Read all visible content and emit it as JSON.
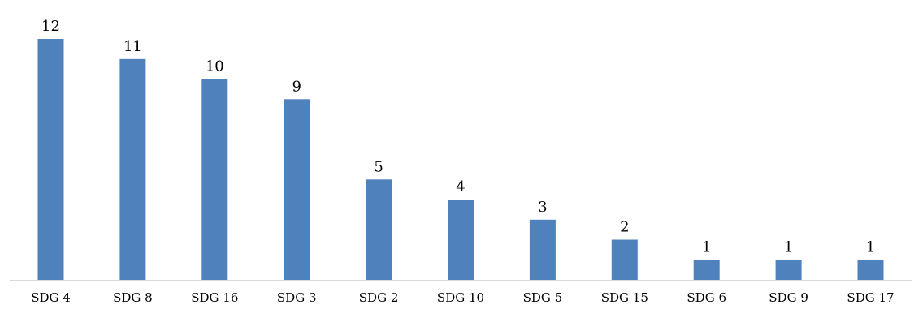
{
  "chart_data": {
    "type": "bar",
    "categories": [
      "SDG 4",
      "SDG 8",
      "SDG 16",
      "SDG 3",
      "SDG 2",
      "SDG 10",
      "SDG 5",
      "SDG 15",
      "SDG 6",
      "SDG 9",
      "SDG 17"
    ],
    "values": [
      12,
      11,
      10,
      9,
      5,
      4,
      3,
      2,
      1,
      1,
      1
    ],
    "title": "",
    "xlabel": "",
    "ylabel": "",
    "ylim": [
      0,
      12
    ],
    "colors": {
      "bar": "#4f81bd",
      "axis": "#d9d9d9"
    },
    "grid": false,
    "legend": "none"
  }
}
